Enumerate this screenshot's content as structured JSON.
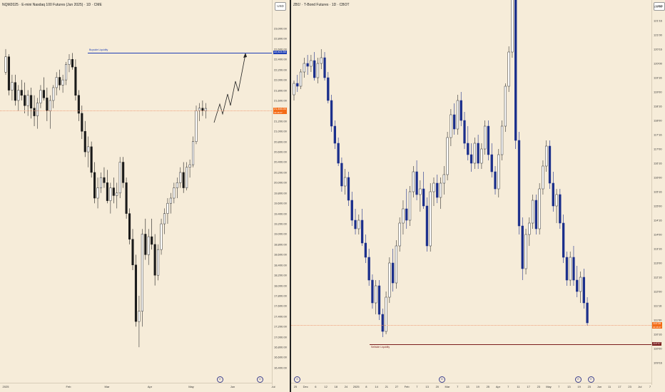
{
  "left": {
    "title": "NQM2025 · E-mini Nasdaq 100 Futures (Jun 2025) · 1D · CME",
    "currency_button": "USD",
    "y_ticks": [
      "23,000.00",
      "22,800.00",
      "22,600.00",
      "22,400.00",
      "22,200.00",
      "22,000.00",
      "21,800.00",
      "21,600.00",
      "21,400.00",
      "21,200.00",
      "21,000.00",
      "20,800.00",
      "20,600.00",
      "20,400.00",
      "20,200.00",
      "20,000.00",
      "19,800.00",
      "19,600.00",
      "19,400.00",
      "19,200.00",
      "19,000.00",
      "18,800.00",
      "18,600.00",
      "18,400.00",
      "18,200.00",
      "18,000.00",
      "17,800.00",
      "17,600.00",
      "17,400.00",
      "17,200.00",
      "17,000.00",
      "16,800.00",
      "16,600.00",
      "16,400.00"
    ],
    "x_ticks": [
      "2025",
      "Feb",
      "Mar",
      "Apr",
      "May",
      "Jun",
      "Jul"
    ],
    "liquidity_label": "Buyside Liquidity",
    "liquidity_price_tag": "22,524.50",
    "current_price_tag": "21,446.00",
    "current_price_sub": "22:46:37",
    "colors": {
      "bull": "#ffffff",
      "bear": "#1a1a1a",
      "liquidity": "#1f3fb5",
      "price_tag": "#f46b16"
    },
    "candles": [
      [
        22150,
        22600,
        22100,
        22450
      ],
      [
        22450,
        22500,
        21700,
        21800
      ],
      [
        21800,
        22100,
        21600,
        21950
      ],
      [
        21950,
        22100,
        21500,
        21600
      ],
      [
        21600,
        21900,
        21400,
        21800
      ],
      [
        21800,
        22000,
        21600,
        21700
      ],
      [
        21700,
        21950,
        21350,
        21500
      ],
      [
        21500,
        21800,
        21300,
        21700
      ],
      [
        21700,
        21850,
        21250,
        21450
      ],
      [
        21450,
        21700,
        21100,
        21300
      ],
      [
        21300,
        21650,
        21050,
        21550
      ],
      [
        21550,
        21900,
        21450,
        21800
      ],
      [
        21800,
        22050,
        21600,
        21650
      ],
      [
        21650,
        21850,
        21200,
        21400
      ],
      [
        21400,
        21700,
        21050,
        21600
      ],
      [
        21600,
        21900,
        21450,
        21850
      ],
      [
        21850,
        22150,
        21700,
        22050
      ],
      [
        22050,
        22200,
        21800,
        21900
      ],
      [
        21900,
        22100,
        21750,
        22000
      ],
      [
        22000,
        22350,
        21900,
        22300
      ],
      [
        22300,
        22500,
        22150,
        22400
      ],
      [
        22400,
        22524,
        22200,
        22250
      ],
      [
        22250,
        22400,
        21600,
        21700
      ],
      [
        21700,
        21800,
        21200,
        21350
      ],
      [
        21350,
        21500,
        20850,
        21000
      ],
      [
        21000,
        21200,
        20500,
        20600
      ],
      [
        20600,
        20900,
        20300,
        20700
      ],
      [
        20700,
        20800,
        20100,
        20200
      ],
      [
        20200,
        20400,
        19600,
        19700
      ],
      [
        19700,
        20100,
        19500,
        19900
      ],
      [
        19900,
        20200,
        19800,
        20100
      ],
      [
        20100,
        20300,
        19900,
        20000
      ],
      [
        20000,
        20250,
        19600,
        19650
      ],
      [
        19650,
        20000,
        19400,
        19900
      ],
      [
        19900,
        20100,
        19600,
        19750
      ],
      [
        19750,
        20000,
        19500,
        19800
      ],
      [
        19800,
        20500,
        19700,
        20400
      ],
      [
        20400,
        20500,
        19900,
        20000
      ],
      [
        20000,
        20100,
        19300,
        19400
      ],
      [
        19400,
        19500,
        18800,
        18900
      ],
      [
        18900,
        19100,
        18300,
        18400
      ],
      [
        18400,
        18600,
        17200,
        17300
      ],
      [
        17300,
        17800,
        16800,
        17500
      ],
      [
        17500,
        19100,
        17200,
        19000
      ],
      [
        19000,
        19300,
        18500,
        18600
      ],
      [
        18600,
        19100,
        18400,
        18950
      ],
      [
        18950,
        19300,
        18700,
        18800
      ],
      [
        18800,
        19000,
        18000,
        18200
      ],
      [
        18200,
        18800,
        18100,
        18700
      ],
      [
        18700,
        19300,
        18600,
        19200
      ],
      [
        19200,
        19500,
        19000,
        19400
      ],
      [
        19400,
        19700,
        19200,
        19600
      ],
      [
        19600,
        19800,
        19400,
        19700
      ],
      [
        19700,
        20000,
        19600,
        19900
      ],
      [
        19900,
        20100,
        19700,
        20000
      ],
      [
        20000,
        20300,
        19900,
        20200
      ],
      [
        20200,
        20400,
        19800,
        19900
      ],
      [
        19900,
        20400,
        19850,
        20300
      ],
      [
        20300,
        20450,
        20100,
        20350
      ],
      [
        20350,
        20900,
        20300,
        20800
      ],
      [
        20800,
        21500,
        20750,
        21400
      ],
      [
        21400,
        21550,
        21200,
        21450
      ],
      [
        21450,
        21600,
        21300,
        21400
      ],
      [
        21400,
        21550,
        21250,
        21446
      ]
    ]
  },
  "right": {
    "title": "ZB1! · T-Bond Futures · 1D · CBOT",
    "currency_button": "USD",
    "y_ticks": [
      "122'00",
      "121'16",
      "121'00",
      "120'16",
      "120'00",
      "119'16",
      "119'00",
      "118'16",
      "118'00",
      "117'16",
      "117'00",
      "116'16",
      "116'00",
      "115'16",
      "115'00",
      "114'16",
      "114'00",
      "113'16",
      "113'00",
      "112'16",
      "112'00",
      "111'16",
      "111'00",
      "110'16",
      "110'00",
      "109'16"
    ],
    "x_ticks": [
      "25",
      "Dec",
      "6",
      "12",
      "18",
      "24",
      "2025",
      "8",
      "14",
      "21",
      "27",
      "Feb",
      "7",
      "13",
      "20",
      "Mar",
      "7",
      "13",
      "19",
      "25",
      "Apr",
      "7",
      "11",
      "17",
      "23",
      "May",
      "7",
      "13",
      "19",
      "23",
      "Jun",
      "11",
      "17",
      "23",
      "Jul",
      "7"
    ],
    "liquidity_label": "Sellside Liquidity",
    "liquidity_price_tag": "110'07",
    "current_price_tag": "110'28",
    "current_price_sub": "22:46:37",
    "colors": {
      "bull": "#ffffff",
      "bear": "#1b2f8c",
      "liquidity": "#7a1c1c",
      "price_tag": "#f46b16"
    },
    "candles": [
      [
        118.9,
        119.4,
        118.7,
        119.3
      ],
      [
        119.3,
        119.6,
        119.0,
        119.2
      ],
      [
        119.2,
        119.8,
        119.1,
        119.7
      ],
      [
        119.7,
        120.2,
        119.5,
        120.0
      ],
      [
        120.0,
        120.3,
        119.6,
        119.9
      ],
      [
        119.9,
        120.3,
        119.7,
        120.1
      ],
      [
        120.1,
        120.4,
        119.4,
        119.5
      ],
      [
        119.5,
        120.2,
        119.3,
        120.0
      ],
      [
        120.0,
        120.5,
        119.8,
        120.2
      ],
      [
        120.2,
        120.4,
        119.4,
        119.5
      ],
      [
        119.5,
        119.7,
        118.6,
        118.7
      ],
      [
        118.7,
        118.9,
        117.6,
        117.8
      ],
      [
        117.8,
        118.0,
        117.0,
        117.2
      ],
      [
        117.2,
        117.4,
        116.4,
        116.5
      ],
      [
        116.5,
        116.7,
        115.5,
        115.7
      ],
      [
        115.7,
        116.3,
        115.4,
        116.0
      ],
      [
        116.0,
        116.2,
        115.0,
        115.2
      ],
      [
        115.2,
        115.5,
        114.3,
        114.5
      ],
      [
        114.5,
        114.9,
        114.0,
        114.2
      ],
      [
        114.2,
        114.7,
        114.0,
        114.5
      ],
      [
        114.5,
        114.9,
        113.6,
        113.7
      ],
      [
        113.7,
        114.0,
        113.0,
        113.2
      ],
      [
        113.2,
        113.5,
        112.2,
        112.4
      ],
      [
        112.4,
        112.6,
        111.4,
        111.6
      ],
      [
        111.6,
        112.4,
        111.2,
        112.2
      ],
      [
        112.2,
        112.4,
        111.0,
        111.2
      ],
      [
        111.2,
        111.4,
        110.4,
        110.6
      ],
      [
        110.6,
        112.0,
        110.5,
        111.8
      ],
      [
        111.8,
        113.2,
        111.6,
        113.0
      ],
      [
        113.0,
        113.5,
        112.0,
        112.3
      ],
      [
        112.3,
        113.8,
        112.1,
        113.6
      ],
      [
        113.6,
        114.6,
        113.4,
        114.4
      ],
      [
        114.4,
        115.2,
        114.0,
        114.9
      ],
      [
        114.9,
        115.6,
        114.2,
        114.5
      ],
      [
        114.5,
        115.7,
        114.3,
        115.5
      ],
      [
        115.5,
        116.4,
        115.3,
        116.2
      ],
      [
        116.2,
        116.6,
        115.2,
        115.4
      ],
      [
        115.4,
        115.9,
        114.8,
        115.6
      ],
      [
        115.6,
        116.2,
        114.9,
        115.0
      ],
      [
        115.0,
        115.3,
        113.4,
        113.6
      ],
      [
        113.6,
        115.8,
        113.4,
        115.5
      ],
      [
        115.5,
        116.0,
        115.0,
        115.8
      ],
      [
        115.8,
        116.1,
        115.1,
        115.3
      ],
      [
        115.3,
        116.0,
        114.9,
        115.8
      ],
      [
        115.8,
        116.4,
        115.4,
        116.1
      ],
      [
        116.1,
        117.6,
        115.9,
        117.4
      ],
      [
        117.4,
        118.4,
        117.1,
        118.2
      ],
      [
        118.2,
        118.6,
        117.5,
        117.7
      ],
      [
        117.7,
        118.9,
        117.5,
        118.7
      ],
      [
        118.7,
        119.0,
        117.8,
        118.0
      ],
      [
        118.0,
        118.3,
        117.0,
        117.2
      ],
      [
        117.2,
        117.8,
        116.6,
        116.8
      ],
      [
        116.8,
        117.2,
        116.2,
        116.5
      ],
      [
        116.5,
        117.4,
        116.3,
        117.2
      ],
      [
        117.2,
        117.5,
        116.3,
        116.5
      ],
      [
        116.5,
        117.2,
        116.3,
        117.0
      ],
      [
        117.0,
        118.0,
        116.8,
        117.8
      ],
      [
        117.8,
        118.0,
        116.6,
        116.8
      ],
      [
        116.8,
        117.2,
        116.0,
        116.2
      ],
      [
        116.2,
        116.4,
        115.4,
        115.6
      ],
      [
        115.6,
        117.0,
        115.3,
        116.8
      ],
      [
        116.8,
        118.0,
        116.6,
        117.8
      ],
      [
        117.8,
        119.3,
        117.6,
        119.2
      ],
      [
        119.2,
        120.6,
        119.0,
        120.4
      ],
      [
        120.4,
        122.8,
        120.2,
        122.5
      ],
      [
        122.5,
        122.6,
        117.0,
        117.3
      ],
      [
        117.3,
        117.6,
        114.0,
        114.3
      ],
      [
        114.3,
        114.6,
        112.4,
        112.8
      ],
      [
        112.8,
        114.2,
        112.6,
        114.0
      ],
      [
        114.0,
        114.6,
        113.6,
        114.4
      ],
      [
        114.4,
        115.4,
        114.2,
        115.2
      ],
      [
        115.2,
        115.4,
        114.0,
        114.2
      ],
      [
        114.2,
        115.8,
        114.0,
        115.6
      ],
      [
        115.6,
        116.6,
        115.4,
        116.4
      ],
      [
        116.4,
        117.3,
        116.2,
        117.1
      ],
      [
        117.1,
        117.3,
        115.6,
        115.8
      ],
      [
        115.8,
        116.2,
        114.8,
        115.0
      ],
      [
        115.0,
        115.6,
        114.4,
        115.4
      ],
      [
        115.4,
        115.6,
        114.2,
        114.4
      ],
      [
        114.4,
        114.7,
        113.0,
        113.2
      ],
      [
        113.2,
        113.4,
        112.2,
        112.4
      ],
      [
        112.4,
        113.4,
        112.2,
        113.2
      ],
      [
        113.2,
        113.6,
        112.2,
        112.4
      ],
      [
        112.4,
        112.9,
        111.8,
        112.0
      ],
      [
        112.0,
        112.7,
        111.6,
        112.5
      ],
      [
        112.5,
        112.8,
        111.4,
        111.6
      ],
      [
        111.6,
        111.8,
        110.8,
        110.9
      ]
    ]
  }
}
